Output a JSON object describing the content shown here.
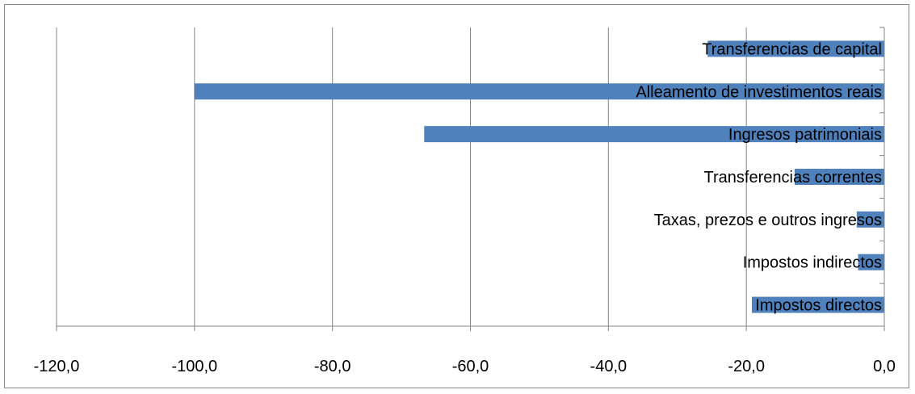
{
  "chart_data": {
    "type": "bar",
    "orientation": "horizontal",
    "categories": [
      "Impostos directos",
      "Impostos indirectos",
      "Taxas, prezos e outros ingresos",
      "Transferencias correntes",
      "Ingresos patrimoniais",
      "Alleamento de investimentos reais",
      "Transferencias de capital"
    ],
    "values": [
      -19.2,
      -3.8,
      -4.0,
      -13.0,
      -66.7,
      -100.0,
      -25.6
    ],
    "xlim": [
      -120,
      0
    ],
    "x_ticks": [
      -120,
      -100,
      -80,
      -60,
      -40,
      -20,
      0
    ],
    "x_tick_labels": [
      "-120,0",
      "-100,0",
      "-80,0",
      "-60,0",
      "-40,0",
      "-20,0",
      "0,0"
    ],
    "grid": true,
    "legend": "none",
    "title": "",
    "xlabel": "",
    "ylabel": "",
    "colors": {
      "bar": "#4F81BD",
      "grid": "#868686",
      "axis": "#868686",
      "border": "#868686"
    }
  }
}
